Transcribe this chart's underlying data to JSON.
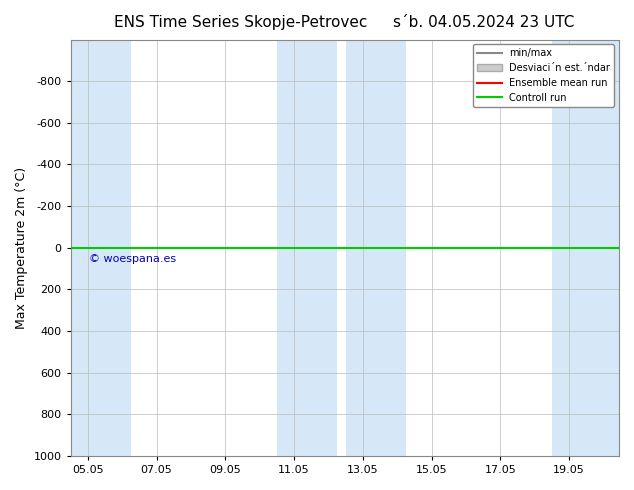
{
  "title_left": "ENS Time Series Skopje-Petrovec",
  "title_right": "s´b. 04.05.2024 23 UTC",
  "ylabel": "Max Temperature 2m (°C)",
  "ylim_bottom": 1000,
  "ylim_top": -1000,
  "xlim_min": 4.55,
  "xlim_max": 20.5,
  "yticks": [
    -800,
    -600,
    -400,
    -200,
    0,
    200,
    400,
    600,
    800,
    1000
  ],
  "xtick_vals": [
    5.05,
    7.05,
    9.05,
    11.05,
    13.05,
    15.05,
    17.05,
    19.05
  ],
  "xtick_labels": [
    "05.05",
    "07.05",
    "09.05",
    "11.05",
    "13.05",
    "15.05",
    "17.05",
    "19.05"
  ],
  "shade_color": "#d6e8f7",
  "shade_spans": [
    [
      4.55,
      6.3
    ],
    [
      10.55,
      12.3
    ],
    [
      12.55,
      14.3
    ],
    [
      18.55,
      20.5
    ]
  ],
  "green_line_color": "#00cc00",
  "red_line_color": "#ff0000",
  "watermark": "© woespana.es",
  "watermark_color": "#0000cc",
  "legend_labels": [
    "min/max",
    "Desviaci´n est.´ndar",
    "Ensemble mean run",
    "Controll run"
  ],
  "legend_colors_line": [
    "#888888",
    "#cccccc",
    "#ff0000",
    "#00cc00"
  ],
  "background_color": "#ffffff"
}
